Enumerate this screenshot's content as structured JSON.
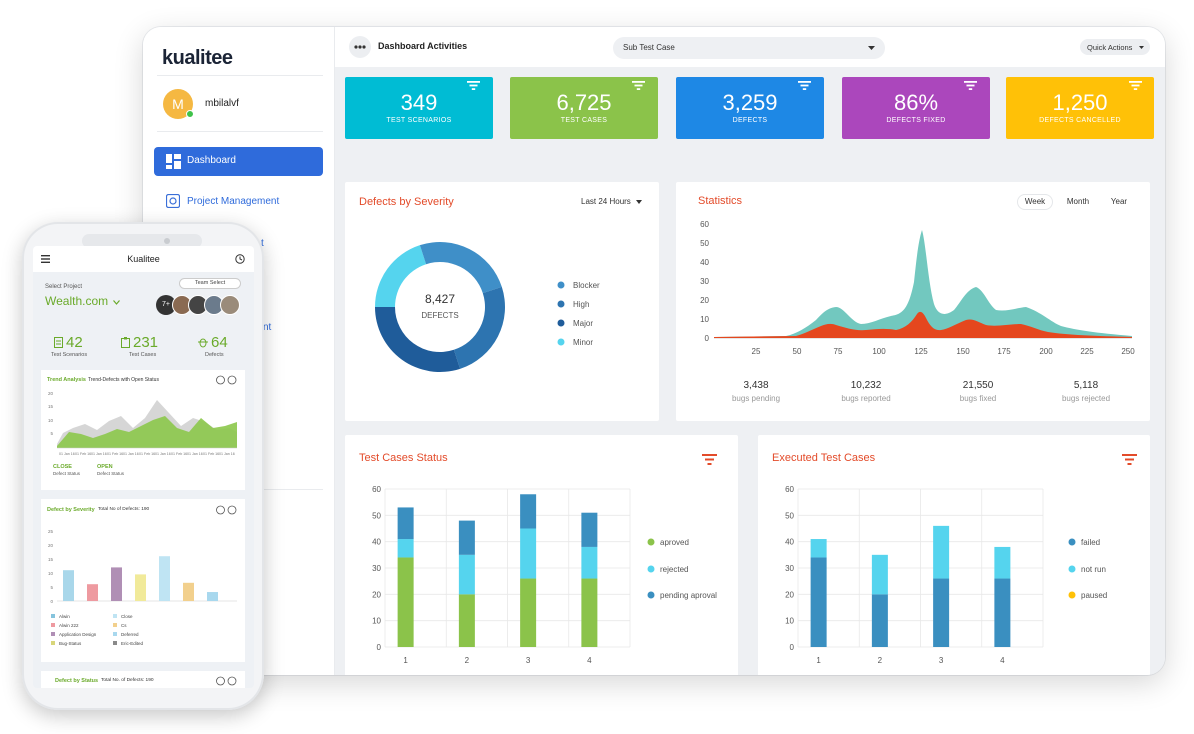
{
  "brand": {
    "name": "kualitee"
  },
  "user": {
    "initial": "M",
    "name": "mbilalvf"
  },
  "sidebar": {
    "items": [
      {
        "label": "Dashboard"
      },
      {
        "label": "Project Management"
      },
      {
        "label": "t"
      },
      {
        "label": "nt"
      }
    ]
  },
  "topbar": {
    "title": "Dashboard Activities",
    "select_value": "Sub Test Case",
    "quick_actions": "Quick Actions"
  },
  "stats": [
    {
      "value": "349",
      "label": "TEST SCENARIOS",
      "color": "#00bcd4"
    },
    {
      "value": "6,725",
      "label": "TEST CASES",
      "color": "#8bc34a"
    },
    {
      "value": "3,259",
      "label": "DEFECTS",
      "color": "#1e88e5"
    },
    {
      "value": "86%",
      "label": "DEFECTS FIXED",
      "color": "#ab47bc"
    },
    {
      "value": "1,250",
      "label": "DEFECTS CANCELLED",
      "color": "#ffc107"
    }
  ],
  "severity": {
    "title": "Defects by Severity",
    "range": "Last 24 Hours",
    "total": "8,427",
    "total_label": "DEFECTS",
    "legend": [
      {
        "name": "Blocker",
        "color": "#3f8fc8"
      },
      {
        "name": "High",
        "color": "#2d74b0"
      },
      {
        "name": "Major",
        "color": "#1f5c9a"
      },
      {
        "name": "Minor",
        "color": "#55d4ee"
      }
    ]
  },
  "statistics": {
    "title": "Statistics",
    "tabs": [
      "Week",
      "Month",
      "Year"
    ],
    "yticks": [
      "60",
      "50",
      "40",
      "30",
      "20",
      "10",
      "0"
    ],
    "xticks": [
      "25",
      "50",
      "75",
      "100",
      "125",
      "150",
      "175",
      "200",
      "225",
      "250"
    ],
    "summary": [
      {
        "value": "3,438",
        "label": "bugs pending"
      },
      {
        "value": "10,232",
        "label": "bugs reported"
      },
      {
        "value": "21,550",
        "label": "bugs fixed"
      },
      {
        "value": "5,118",
        "label": "bugs rejected"
      }
    ]
  },
  "chart_data": [
    {
      "type": "bar",
      "title": "Test Cases Status",
      "categories": [
        "1",
        "2",
        "3",
        "4"
      ],
      "ylim": [
        0,
        60
      ],
      "yticks": [
        "60",
        "50",
        "40",
        "30",
        "20",
        "10",
        "0"
      ],
      "series": [
        {
          "name": "aproved",
          "color": "#8bc34a",
          "values": [
            34,
            20,
            26,
            26
          ]
        },
        {
          "name": "rejected",
          "color": "#55d4ee",
          "values": [
            7,
            15,
            19,
            12
          ]
        },
        {
          "name": "pending aproval",
          "color": "#3a8fc0",
          "values": [
            12,
            13,
            13,
            13
          ]
        }
      ]
    },
    {
      "type": "bar",
      "title": "Executed Test Cases",
      "categories": [
        "1",
        "2",
        "3",
        "4"
      ],
      "ylim": [
        0,
        60
      ],
      "yticks": [
        "60",
        "50",
        "40",
        "30",
        "20",
        "10",
        "0"
      ],
      "series": [
        {
          "name": "failed",
          "color": "#3a8fc0",
          "values": [
            34,
            20,
            26,
            26
          ]
        },
        {
          "name": "not run",
          "color": "#55d4ee",
          "values": [
            7,
            15,
            20,
            12
          ]
        },
        {
          "name": "paused",
          "color": "#ffc107",
          "values": [
            0,
            0,
            0,
            0
          ]
        }
      ]
    }
  ],
  "mobile": {
    "title": "Kualitee",
    "select_project": "Select Project",
    "project": "Wealth.com",
    "team_select": "Team Select",
    "team_more": "7+",
    "stats": [
      {
        "value": "42",
        "label": "Test Scenarios"
      },
      {
        "value": "231",
        "label": "Test Cases"
      },
      {
        "value": "64",
        "label": "Defects"
      }
    ],
    "trend": {
      "title": "Trend Analysis",
      "subtitle": "Trend-Defects with Open Status",
      "close_label": "CLOSE",
      "close_sub": "Defect Status",
      "open_label": "OPEN",
      "open_sub": "Defect Status",
      "yticks": [
        "20",
        "15",
        "10",
        "5"
      ],
      "dates": [
        "01 Jan 16",
        "01 Feb 16",
        "01 Jan 16",
        "01 Feb 16",
        "01 Jan 16",
        "01 Feb 16",
        "01 Jan 16",
        "01 Feb 16",
        "01 Jan 16",
        "01 Feb 16",
        "01 Jan 16"
      ]
    },
    "severity": {
      "title": "Defect by Severity",
      "subtitle": "Total No of Defects: 190",
      "yticks": [
        "25",
        "20",
        "15",
        "10",
        "5",
        "0"
      ],
      "bars": [
        {
          "value": 11,
          "color": "#a9d7ea"
        },
        {
          "value": 6,
          "color": "#ee9aa0"
        },
        {
          "value": 12,
          "color": "#b08fb5"
        },
        {
          "value": 9.5,
          "color": "#f1ea9a"
        },
        {
          "value": 16,
          "color": "#bfe4f3"
        },
        {
          "value": 6.5,
          "color": "#f2d08d"
        },
        {
          "value": 3.2,
          "color": "#a8d8ee"
        }
      ],
      "legend": [
        {
          "name": "Alwin",
          "color": "#86c4dd"
        },
        {
          "name": "Close",
          "color": "#bfe4f3"
        },
        {
          "name": "Alwin 222",
          "color": "#ee9aa0"
        },
        {
          "name": "Cs",
          "color": "#f2d08d"
        },
        {
          "name": "Application Design",
          "color": "#b08fb5"
        },
        {
          "name": "Deferred",
          "color": "#a8d8ee"
        },
        {
          "name": "Bug-Status",
          "color": "#d8d67a"
        },
        {
          "name": "Eric-Edited",
          "color": "#8a8a8a"
        }
      ]
    },
    "status": {
      "title": "Defect by Status",
      "subtitle": "Total No. of Defects: 190"
    }
  }
}
